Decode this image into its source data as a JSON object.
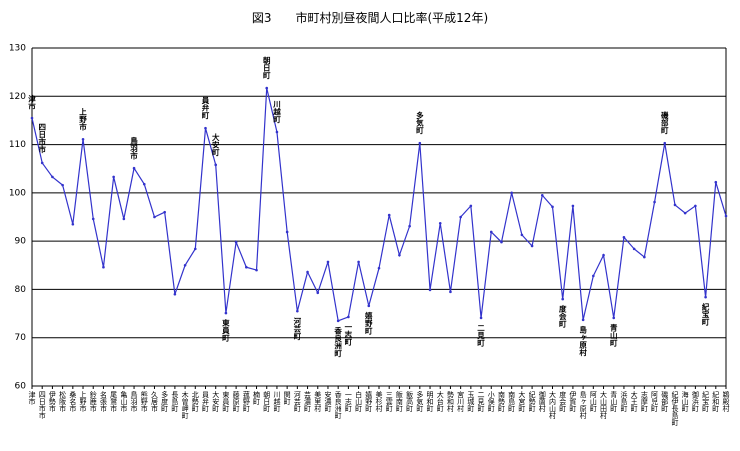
{
  "chart_data": {
    "type": "line",
    "title": "図3　　市町村別昼夜間人口比率(平成12年)",
    "categories": [
      "津市",
      "四日市市",
      "伊勢市",
      "松阪市",
      "桑名市",
      "上野市",
      "鈴鹿市",
      "名張市",
      "尾鷲市",
      "亀山市",
      "鳥羽市",
      "熊野市",
      "久居市",
      "多度町",
      "長島町",
      "木曽岬町",
      "北勢町",
      "員弁町",
      "大安町",
      "東員町",
      "藤原町",
      "菰野町",
      "楠町",
      "朝日町",
      "川越町",
      "関町",
      "河芸町",
      "芸濃町",
      "美里村",
      "安濃町",
      "香良洲町",
      "一志町",
      "白山町",
      "嬉野町",
      "美杉村",
      "三雲町",
      "飯南町",
      "飯高町",
      "多気町",
      "明和町",
      "大台町",
      "勢和村",
      "宮川村",
      "玉城町",
      "二見町",
      "小俣町",
      "南勢町",
      "南島町",
      "大宮町",
      "紀勢町",
      "御薗村",
      "大内山村",
      "度会町",
      "伊賀町",
      "島ヶ原村",
      "阿山町",
      "大山田村",
      "青山町",
      "浜島町",
      "大王町",
      "志摩町",
      "阿児町",
      "磯部町",
      "紀伊長島町",
      "海山町",
      "御浜町",
      "紀宝町",
      "紀和町",
      "鵜殿村"
    ],
    "values": [
      115.5,
      106.2,
      103.3,
      101.6,
      93.5,
      111.1,
      94.6,
      84.6,
      103.3,
      94.6,
      105.1,
      101.8,
      95,
      96,
      79,
      85,
      88.4,
      113.4,
      105.8,
      75.1,
      89.8,
      84.6,
      84,
      121.7,
      112.6,
      91.9,
      75.5,
      83.6,
      79.3,
      85.7,
      73.5,
      74.3,
      85.7,
      76.6,
      84.4,
      95.4,
      87.1,
      93.1,
      110.3,
      79.9,
      93.7,
      79.5,
      95,
      97.3,
      74.1,
      91.9,
      89.8,
      100,
      91.3,
      89,
      99.5,
      97.1,
      78,
      97.3,
      73.7,
      82.8,
      87.1,
      74.1,
      90.8,
      88.4,
      86.7,
      98.1,
      110.3,
      97.5,
      95.8,
      97.3,
      78.4,
      102.2,
      95.2
    ],
    "color": "#3333cc",
    "annotations": [
      "津市",
      "四日市市",
      "上野市",
      "鳥羽市",
      "員弁町",
      "大安町",
      "東員町",
      "朝日町",
      "川越町",
      "河芸町",
      "香良洲町",
      "一志町",
      "嬉野町",
      "多気町",
      "二見町",
      "度会町",
      "島ヶ原村",
      "青山町",
      "磯部町",
      "紀宝町"
    ],
    "ylim": [
      60,
      130
    ],
    "yticks": [
      60,
      70,
      80,
      90,
      100,
      110,
      120,
      130
    ],
    "grid": true
  }
}
